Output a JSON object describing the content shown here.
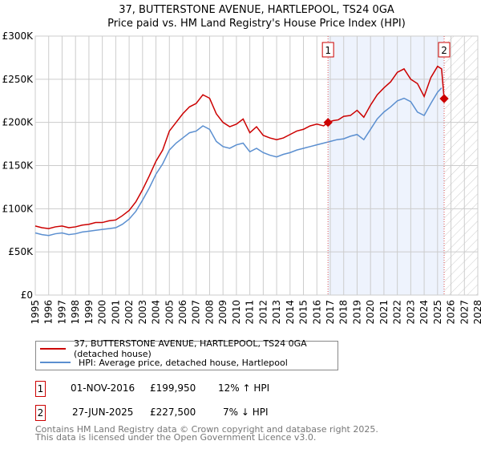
{
  "chart_data": {
    "type": "line",
    "title": "37, BUTTERSTONE AVENUE, HARTLEPOOL, TS24 0GA",
    "subtitle": "Price paid vs. HM Land Registry's House Price Index (HPI)",
    "xlim": [
      1995,
      2028
    ],
    "ylim": [
      0,
      300000
    ],
    "yticks": [
      {
        "v": 0,
        "label": "£0"
      },
      {
        "v": 50000,
        "label": "£50K"
      },
      {
        "v": 100000,
        "label": "£100K"
      },
      {
        "v": 150000,
        "label": "£150K"
      },
      {
        "v": 200000,
        "label": "£200K"
      },
      {
        "v": 250000,
        "label": "£250K"
      },
      {
        "v": 300000,
        "label": "£300K"
      }
    ],
    "xticks": [
      "1995",
      "1996",
      "1997",
      "1998",
      "1999",
      "2000",
      "2001",
      "2002",
      "2003",
      "2004",
      "2005",
      "2006",
      "2007",
      "2008",
      "2009",
      "2010",
      "2011",
      "2012",
      "2013",
      "2014",
      "2015",
      "2016",
      "2017",
      "2018",
      "2019",
      "2020",
      "2021",
      "2022",
      "2023",
      "2024",
      "2025",
      "2026",
      "2027",
      "2028"
    ],
    "grid": true,
    "series": [
      {
        "name": "37, BUTTERSTONE AVENUE, HARTLEPOOL, TS24 0GA (detached house)",
        "color": "#cc0000",
        "x": [
          1995,
          1995.5,
          1996,
          1996.5,
          1997,
          1997.5,
          1998,
          1998.5,
          1999,
          1999.5,
          2000,
          2000.5,
          2001,
          2001.5,
          2002,
          2002.5,
          2003,
          2003.5,
          2004,
          2004.5,
          2005,
          2005.5,
          2006,
          2006.5,
          2007,
          2007.5,
          2008,
          2008.5,
          2009,
          2009.5,
          2010,
          2010.5,
          2011,
          2011.5,
          2012,
          2012.5,
          2013,
          2013.5,
          2014,
          2014.5,
          2015,
          2015.5,
          2016,
          2016.5,
          2016.83,
          2017.2,
          2017.6,
          2018,
          2018.5,
          2019,
          2019.5,
          2020,
          2020.5,
          2021,
          2021.5,
          2022,
          2022.5,
          2023,
          2023.5,
          2024,
          2024.5,
          2025,
          2025.3,
          2025.49
        ],
        "y": [
          80000,
          78000,
          77000,
          79000,
          80000,
          78000,
          79000,
          81000,
          82000,
          84000,
          84000,
          86000,
          87000,
          92000,
          98000,
          108000,
          122000,
          138000,
          155000,
          168000,
          190000,
          200000,
          210000,
          218000,
          222000,
          232000,
          228000,
          210000,
          200000,
          195000,
          198000,
          204000,
          188000,
          195000,
          185000,
          182000,
          180000,
          182000,
          186000,
          190000,
          192000,
          196000,
          198000,
          196000,
          199950,
          202000,
          203000,
          207000,
          208000,
          214000,
          206000,
          220000,
          232000,
          240000,
          247000,
          258000,
          262000,
          250000,
          245000,
          230000,
          252000,
          265000,
          262000,
          227500
        ]
      },
      {
        "name": "HPI: Average price, detached house, Hartlepool",
        "color": "#5b8fd0",
        "x": [
          1995,
          1995.5,
          1996,
          1996.5,
          1997,
          1997.5,
          1998,
          1998.5,
          1999,
          1999.5,
          2000,
          2000.5,
          2001,
          2001.5,
          2002,
          2002.5,
          2003,
          2003.5,
          2004,
          2004.5,
          2005,
          2005.5,
          2006,
          2006.5,
          2007,
          2007.5,
          2008,
          2008.5,
          2009,
          2009.5,
          2010,
          2010.5,
          2011,
          2011.5,
          2012,
          2012.5,
          2013,
          2013.5,
          2014,
          2014.5,
          2015,
          2015.5,
          2016,
          2016.5,
          2017,
          2017.5,
          2018,
          2018.5,
          2019,
          2019.5,
          2020,
          2020.5,
          2021,
          2021.5,
          2022,
          2022.5,
          2023,
          2023.5,
          2024,
          2024.5,
          2025,
          2025.3
        ],
        "y": [
          72000,
          70000,
          69000,
          71000,
          72000,
          70000,
          71000,
          73000,
          74000,
          75000,
          76000,
          77000,
          78000,
          82000,
          88000,
          97000,
          110000,
          124000,
          140000,
          152000,
          168000,
          176000,
          182000,
          188000,
          190000,
          196000,
          192000,
          178000,
          172000,
          170000,
          174000,
          176000,
          166000,
          170000,
          165000,
          162000,
          160000,
          163000,
          165000,
          168000,
          170000,
          172000,
          174000,
          176000,
          178000,
          180000,
          181000,
          184000,
          186000,
          180000,
          192000,
          204000,
          212000,
          218000,
          225000,
          228000,
          224000,
          212000,
          208000,
          222000,
          235000,
          240000
        ]
      }
    ],
    "sales": [
      {
        "n": "1",
        "x": 2016.83,
        "date": "01-NOV-2016",
        "price": "£199,950",
        "value": 199950,
        "hpi": "12% ↑ HPI"
      },
      {
        "n": "2",
        "x": 2025.49,
        "date": "27-JUN-2025",
        "price": "£227,500",
        "value": 227500,
        "hpi": "7% ↓ HPI"
      }
    ],
    "legend": "bottom"
  },
  "footer": {
    "line1": "Contains HM Land Registry data © Crown copyright and database right 2025.",
    "line2": "This data is licensed under the Open Government Licence v3.0."
  }
}
